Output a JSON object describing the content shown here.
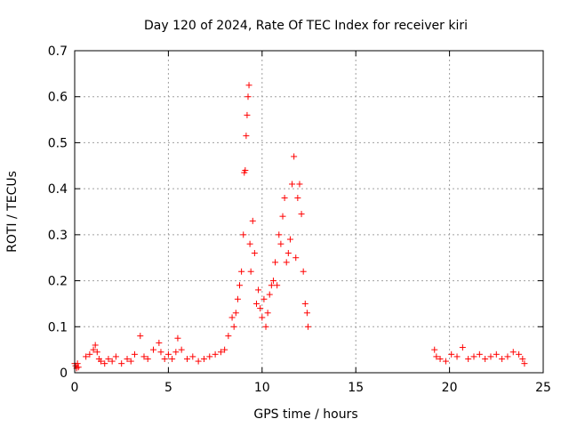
{
  "chart_data": {
    "type": "scatter",
    "title": "Day 120 of 2024, Rate Of TEC Index for receiver kiri",
    "xlabel": "GPS time / hours",
    "ylabel": "ROTI / TECUs",
    "xlim": [
      0,
      25
    ],
    "ylim": [
      0,
      0.7
    ],
    "xticks": [
      "0",
      "5",
      "10",
      "15",
      "20",
      "25"
    ],
    "yticks": [
      "0",
      "0.1",
      "0.2",
      "0.3",
      "0.4",
      "0.5",
      "0.6",
      "0.7"
    ],
    "grid": true,
    "marker": "+",
    "series_color": "#ff0000",
    "series": [
      {
        "x": [
          0.0,
          0.05,
          0.1,
          0.15,
          0.2,
          0.6,
          0.8,
          1.0,
          1.1,
          1.2,
          1.3,
          1.4,
          1.6,
          1.8,
          2.0,
          2.2,
          2.5,
          2.8,
          3.0,
          3.2,
          3.5,
          3.7,
          3.9,
          4.2,
          4.5,
          4.6,
          4.8,
          5.0,
          5.2,
          5.4,
          5.5,
          5.7,
          6.0,
          6.3,
          6.6,
          6.9,
          7.2,
          7.5,
          7.8,
          8.0,
          8.2,
          8.4,
          8.5,
          8.6,
          8.7,
          8.8,
          8.9,
          9.0,
          9.05,
          9.1,
          9.15,
          9.2,
          9.25,
          9.3,
          9.35,
          9.4,
          9.5,
          9.6,
          9.7,
          9.8,
          9.9,
          10.0,
          10.1,
          10.2,
          10.3,
          10.4,
          10.5,
          10.6,
          10.7,
          10.8,
          10.9,
          11.0,
          11.1,
          11.2,
          11.3,
          11.4,
          11.5,
          11.6,
          11.7,
          11.8,
          11.9,
          12.0,
          12.1,
          12.2,
          12.3,
          12.4,
          12.45,
          19.2,
          19.3,
          19.5,
          19.8,
          20.1,
          20.4,
          20.7,
          21.0,
          21.3,
          21.6,
          21.9,
          22.2,
          22.5,
          22.8,
          23.1,
          23.4,
          23.7,
          23.9,
          24.0
        ],
        "y": [
          0.02,
          0.015,
          0.01,
          0.02,
          0.012,
          0.035,
          0.04,
          0.05,
          0.06,
          0.045,
          0.03,
          0.025,
          0.02,
          0.03,
          0.025,
          0.035,
          0.02,
          0.03,
          0.025,
          0.04,
          0.08,
          0.035,
          0.03,
          0.05,
          0.065,
          0.045,
          0.03,
          0.04,
          0.03,
          0.045,
          0.075,
          0.05,
          0.03,
          0.035,
          0.025,
          0.03,
          0.035,
          0.04,
          0.045,
          0.05,
          0.08,
          0.12,
          0.1,
          0.13,
          0.16,
          0.19,
          0.22,
          0.3,
          0.435,
          0.44,
          0.515,
          0.56,
          0.6,
          0.625,
          0.28,
          0.22,
          0.33,
          0.26,
          0.15,
          0.18,
          0.14,
          0.12,
          0.16,
          0.1,
          0.13,
          0.17,
          0.19,
          0.2,
          0.24,
          0.19,
          0.3,
          0.28,
          0.34,
          0.38,
          0.24,
          0.26,
          0.29,
          0.41,
          0.47,
          0.25,
          0.38,
          0.41,
          0.345,
          0.22,
          0.15,
          0.13,
          0.1,
          0.05,
          0.035,
          0.03,
          0.025,
          0.04,
          0.035,
          0.055,
          0.03,
          0.035,
          0.04,
          0.03,
          0.035,
          0.04,
          0.03,
          0.035,
          0.045,
          0.04,
          0.03,
          0.02
        ]
      }
    ]
  }
}
